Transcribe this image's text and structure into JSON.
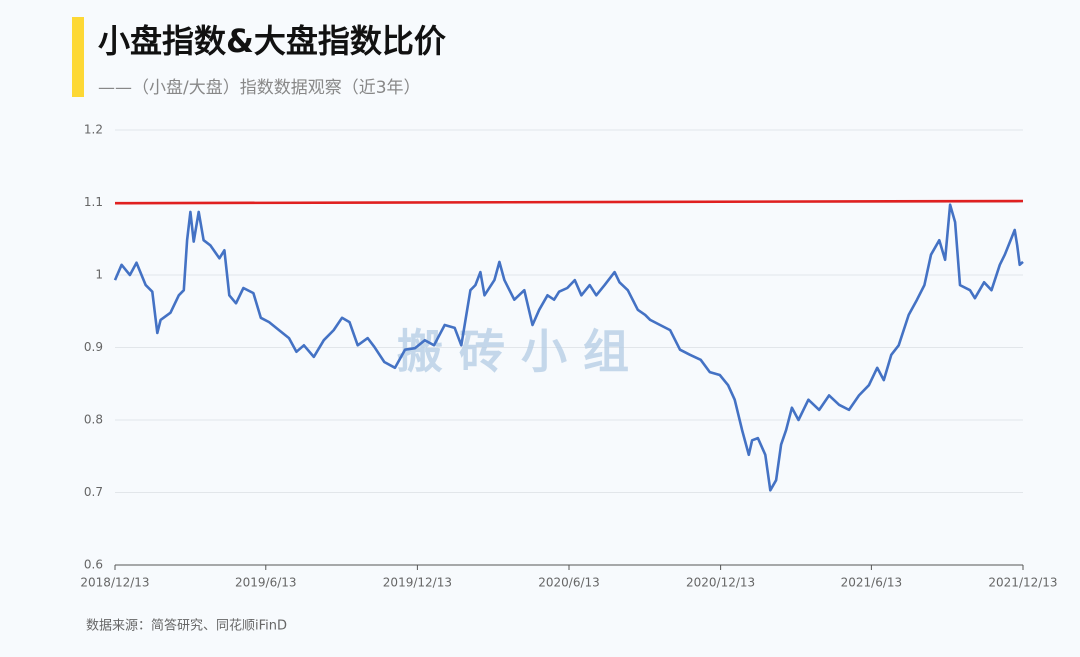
{
  "chart_data": {
    "type": "line",
    "title": "小盘指数&大盘指数比价",
    "subtitle": "——（小盘/大盘）指数数据观察（近3年）",
    "watermark": "搬 砖 小 组",
    "source": "数据来源：简答研究、同花顺iFinD",
    "xlim": [
      "2018/12/13",
      "2021/12/13"
    ],
    "xticks": [
      "2018/12/13",
      "2019/6/13",
      "2019/12/13",
      "2020/6/13",
      "2020/12/13",
      "2021/6/13",
      "2021/12/13"
    ],
    "ylim": [
      0.6,
      1.2
    ],
    "yticks": [
      0.6,
      0.7,
      0.8,
      0.9,
      1,
      1.1,
      1.2
    ],
    "grid": true,
    "series": [
      {
        "color": "#4472c4",
        "x": [
          "2018/12/13",
          "2018/12/21",
          "2018/12/31",
          "2019/1/8",
          "2019/1/19",
          "2019/1/27",
          "2019/2/2",
          "2019/2/6",
          "2019/2/18",
          "2019/2/28",
          "2019/3/6",
          "2019/3/10",
          "2019/3/14",
          "2019/3/18",
          "2019/3/24",
          "2019/3/30",
          "2019/4/7",
          "2019/4/18",
          "2019/4/24",
          "2019/4/30",
          "2019/5/8",
          "2019/5/17",
          "2019/5/29",
          "2019/6/7",
          "2019/6/17",
          "2019/6/29",
          "2019/7/11",
          "2019/7/20",
          "2019/7/29",
          "2019/8/10",
          "2019/8/22",
          "2019/9/3",
          "2019/9/13",
          "2019/9/22",
          "2019/10/2",
          "2019/10/14",
          "2019/10/22",
          "2019/11/3",
          "2019/11/16",
          "2019/11/28",
          "2019/12/10",
          "2019/12/22",
          "2020/1/2",
          "2020/1/15",
          "2020/1/27",
          "2020/2/4",
          "2020/2/15",
          "2020/2/21",
          "2020/2/27",
          "2020/3/3",
          "2020/3/15",
          "2020/3/21",
          "2020/3/27",
          "2020/4/8",
          "2020/4/20",
          "2020/4/30",
          "2020/5/8",
          "2020/5/18",
          "2020/5/26",
          "2020/6/1",
          "2020/6/11",
          "2020/6/20",
          "2020/6/28",
          "2020/7/8",
          "2020/7/16",
          "2020/7/26",
          "2020/8/7",
          "2020/8/13",
          "2020/8/23",
          "2020/9/4",
          "2020/9/13",
          "2020/9/19",
          "2020/10/1",
          "2020/10/13",
          "2020/10/25",
          "2020/11/6",
          "2020/11/19",
          "2020/11/30",
          "2020/12/12",
          "2020/12/22",
          "2020/12/30",
          "2021/1/8",
          "2021/1/16",
          "2021/1/20",
          "2021/1/27",
          "2021/2/5",
          "2021/2/11",
          "2021/2/18",
          "2021/2/24",
          "2021/3/2",
          "2021/3/9",
          "2021/3/17",
          "2021/3/29",
          "2021/4/11",
          "2021/4/23",
          "2021/5/5",
          "2021/5/17",
          "2021/5/29",
          "2021/6/10",
          "2021/6/20",
          "2021/6/28",
          "2021/7/7",
          "2021/7/16",
          "2021/7/28",
          "2021/8/7",
          "2021/8/16",
          "2021/8/24",
          "2021/9/3",
          "2021/9/10",
          "2021/9/16",
          "2021/9/22",
          "2021/9/28",
          "2021/10/10",
          "2021/10/16",
          "2021/10/27",
          "2021/11/5",
          "2021/11/15",
          "2021/11/21",
          "2021/12/3",
          "2021/12/6",
          "2021/12/9",
          "2021/12/13"
        ],
        "values": [
          0.993,
          1.014,
          1.0,
          1.017,
          0.986,
          0.977,
          0.92,
          0.938,
          0.948,
          0.972,
          0.979,
          1.048,
          1.087,
          1.046,
          1.087,
          1.048,
          1.041,
          1.023,
          1.034,
          0.972,
          0.961,
          0.982,
          0.975,
          0.941,
          0.935,
          0.924,
          0.913,
          0.894,
          0.903,
          0.887,
          0.91,
          0.924,
          0.941,
          0.935,
          0.903,
          0.913,
          0.901,
          0.88,
          0.872,
          0.897,
          0.899,
          0.91,
          0.903,
          0.931,
          0.927,
          0.903,
          0.979,
          0.986,
          1.004,
          0.972,
          0.993,
          1.018,
          0.993,
          0.966,
          0.979,
          0.931,
          0.952,
          0.972,
          0.966,
          0.977,
          0.982,
          0.993,
          0.972,
          0.986,
          0.972,
          0.986,
          1.004,
          0.99,
          0.979,
          0.952,
          0.945,
          0.938,
          0.931,
          0.924,
          0.897,
          0.89,
          0.883,
          0.866,
          0.862,
          0.848,
          0.828,
          0.786,
          0.752,
          0.772,
          0.775,
          0.752,
          0.703,
          0.717,
          0.766,
          0.786,
          0.817,
          0.8,
          0.828,
          0.814,
          0.834,
          0.821,
          0.814,
          0.834,
          0.848,
          0.872,
          0.855,
          0.89,
          0.903,
          0.945,
          0.966,
          0.986,
          1.028,
          1.048,
          1.021,
          1.097,
          1.073,
          0.986,
          0.979,
          0.968,
          0.99,
          0.979,
          1.014,
          1.028,
          1.062,
          1.041,
          1.014,
          1.018
        ]
      },
      {
        "color": "#e02020",
        "x": [
          "2018/12/13",
          "2021/12/13"
        ],
        "values": [
          1.099,
          1.102
        ]
      }
    ]
  }
}
